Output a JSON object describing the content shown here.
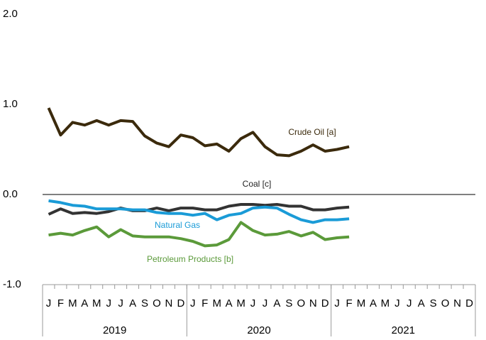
{
  "chart_data": {
    "type": "line",
    "categories": [
      "J",
      "F",
      "M",
      "A",
      "M",
      "J",
      "J",
      "A",
      "S",
      "O",
      "N",
      "D",
      "J",
      "F",
      "M",
      "A",
      "M",
      "J",
      "J",
      "A",
      "S",
      "O",
      "N",
      "D",
      "J",
      "F",
      "M",
      "A",
      "M",
      "J",
      "J",
      "A",
      "S",
      "O",
      "N",
      "D"
    ],
    "years": [
      "2019",
      "2020",
      "2021"
    ],
    "ylim": [
      -1.0,
      2.0
    ],
    "yticks": [
      {
        "value": 2.0,
        "label": "2.0"
      },
      {
        "value": 1.0,
        "label": "1.0"
      },
      {
        "value": 0.0,
        "label": "0.0"
      },
      {
        "value": -1.0,
        "label": "-1.0"
      }
    ],
    "series": [
      {
        "name": "Crude Oil [a]",
        "color": "#3b2a0c",
        "values": [
          0.96,
          0.66,
          0.8,
          0.77,
          0.82,
          0.77,
          0.82,
          0.81,
          0.65,
          0.57,
          0.53,
          0.66,
          0.63,
          0.54,
          0.56,
          0.48,
          0.62,
          0.69,
          0.53,
          0.44,
          0.43,
          0.48,
          0.55,
          0.48,
          0.5,
          0.53,
          null,
          null,
          null,
          null,
          null,
          null,
          null,
          null,
          null,
          null
        ]
      },
      {
        "name": "Coal [c]",
        "color": "#333333",
        "values": [
          -0.22,
          -0.16,
          -0.21,
          -0.2,
          -0.21,
          -0.19,
          -0.15,
          -0.18,
          -0.18,
          -0.15,
          -0.18,
          -0.15,
          -0.15,
          -0.17,
          -0.17,
          -0.13,
          -0.11,
          -0.11,
          -0.12,
          -0.11,
          -0.13,
          -0.13,
          -0.17,
          -0.17,
          -0.15,
          -0.14,
          null,
          null,
          null,
          null,
          null,
          null,
          null,
          null,
          null,
          null
        ]
      },
      {
        "name": "Natural Gas",
        "color": "#1a9bd7",
        "values": [
          -0.07,
          -0.09,
          -0.12,
          -0.13,
          -0.16,
          -0.16,
          -0.16,
          -0.17,
          -0.17,
          -0.2,
          -0.21,
          -0.21,
          -0.23,
          -0.21,
          -0.28,
          -0.23,
          -0.21,
          -0.15,
          -0.14,
          -0.15,
          -0.22,
          -0.28,
          -0.31,
          -0.28,
          -0.28,
          -0.27,
          null,
          null,
          null,
          null,
          null,
          null,
          null,
          null,
          null,
          null
        ]
      },
      {
        "name": "Petroleum Products [b]",
        "color": "#5b9a3a",
        "values": [
          -0.45,
          -0.43,
          -0.45,
          -0.4,
          -0.36,
          -0.47,
          -0.39,
          -0.46,
          -0.47,
          -0.47,
          -0.47,
          -0.49,
          -0.52,
          -0.57,
          -0.56,
          -0.5,
          -0.31,
          -0.4,
          -0.45,
          -0.44,
          -0.41,
          -0.46,
          -0.42,
          -0.5,
          -0.48,
          -0.47,
          null,
          null,
          null,
          null,
          null,
          null,
          null,
          null,
          null,
          null
        ]
      }
    ]
  }
}
